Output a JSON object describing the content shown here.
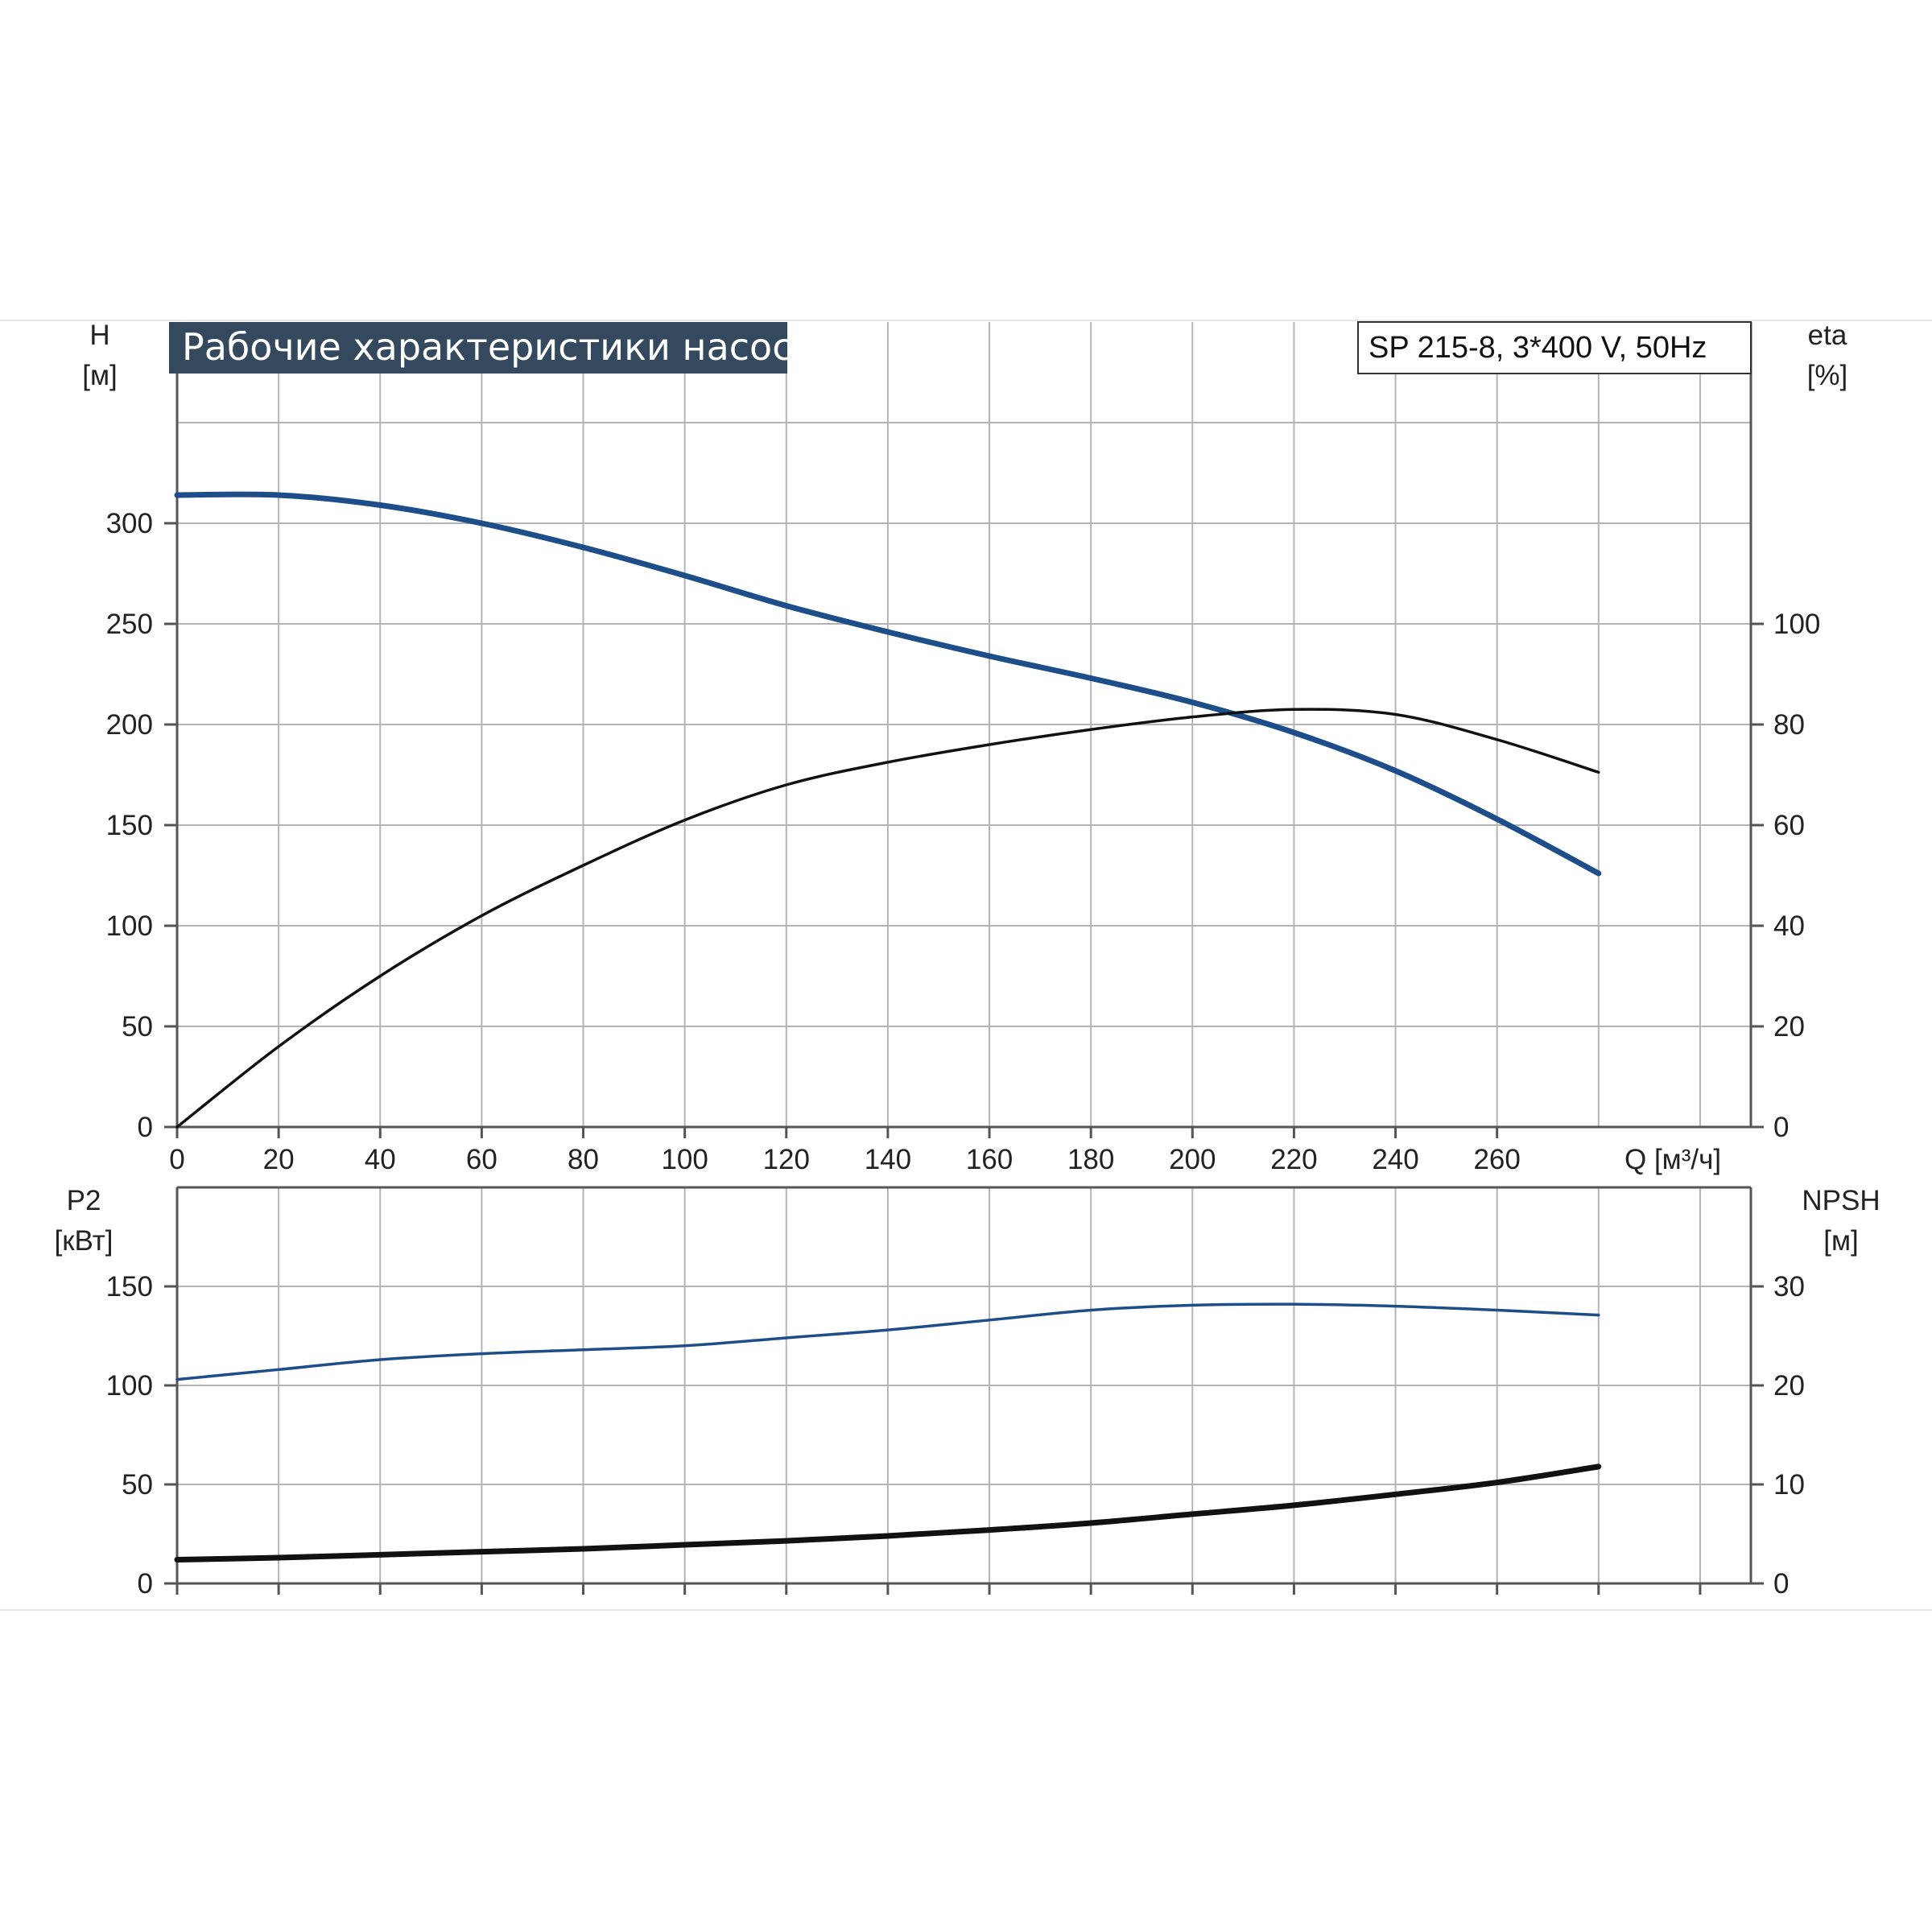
{
  "title": "Рабочие характеристики насоса",
  "model": "SP 215-8, 3*400 V, 50Hz",
  "colors": {
    "blue_curve": "#1d4e8a",
    "black_curve": "#111111",
    "grid": "#b4b4b4",
    "title_bg": "#34495e"
  },
  "chart_data": [
    {
      "type": "line",
      "x_axis": {
        "label": "Q [м³/ч]",
        "range": [
          0,
          310
        ],
        "ticks": [
          0,
          20,
          40,
          60,
          80,
          100,
          120,
          140,
          160,
          180,
          200,
          220,
          240,
          260
        ],
        "tick_labels": [
          "0",
          "20",
          "40",
          "60",
          "80",
          "100",
          "120",
          "140",
          "160",
          "180",
          "200",
          "220",
          "240",
          "260"
        ]
      },
      "y_left": {
        "label": "H",
        "unit": "[м]",
        "range": [
          0,
          400
        ],
        "ticks": [
          0,
          50,
          100,
          150,
          200,
          250,
          300
        ],
        "tick_labels": [
          "0",
          "50",
          "100",
          "150",
          "200",
          "250",
          "300"
        ]
      },
      "y_right": {
        "label": "eta",
        "unit": "[%]",
        "range": [
          0,
          160
        ],
        "ticks": [
          0,
          20,
          40,
          60,
          80,
          100
        ],
        "tick_labels": [
          "0",
          "20",
          "40",
          "60",
          "80",
          "100"
        ]
      },
      "grid": true,
      "series": [
        {
          "axis": "left",
          "color": "#1d4e8a",
          "x": [
            0,
            20,
            40,
            60,
            80,
            100,
            120,
            140,
            160,
            180,
            200,
            220,
            240,
            260,
            280
          ],
          "y": [
            314,
            314,
            309,
            300,
            288,
            274,
            259,
            246,
            234,
            223,
            211,
            196,
            177,
            153,
            126
          ]
        },
        {
          "axis": "right",
          "color": "#111111",
          "x": [
            0,
            20,
            40,
            60,
            80,
            100,
            120,
            140,
            160,
            180,
            200,
            220,
            240,
            260,
            280
          ],
          "y": [
            0,
            16,
            30,
            42,
            52,
            61,
            68,
            72.5,
            76,
            79,
            81.5,
            83,
            82,
            77,
            70.5
          ]
        }
      ]
    },
    {
      "type": "line",
      "x_axis": {
        "range": [
          0,
          310
        ],
        "ticks": [
          0,
          20,
          40,
          60,
          80,
          100,
          120,
          140,
          160,
          180,
          200,
          220,
          240,
          260,
          280,
          300
        ]
      },
      "y_left": {
        "label": "P2",
        "unit": "[кВт]",
        "range": [
          0,
          200
        ],
        "ticks": [
          0,
          50,
          100,
          150
        ],
        "tick_labels": [
          "0",
          "50",
          "100",
          "150"
        ]
      },
      "y_right": {
        "label": "NPSH",
        "unit": "[м]",
        "range": [
          0,
          40
        ],
        "ticks": [
          0,
          10,
          20,
          30
        ],
        "tick_labels": [
          "0",
          "10",
          "20",
          "30"
        ]
      },
      "grid": true,
      "series": [
        {
          "axis": "left",
          "color": "#1d4e8a",
          "x": [
            0,
            20,
            40,
            60,
            80,
            100,
            120,
            140,
            160,
            180,
            200,
            220,
            240,
            260,
            280
          ],
          "y": [
            103,
            108,
            113,
            116,
            118,
            120,
            124,
            128,
            133,
            138,
            140.5,
            141,
            140,
            138,
            135.5
          ]
        },
        {
          "axis": "right",
          "color": "#111111",
          "x": [
            0,
            20,
            40,
            60,
            80,
            100,
            120,
            140,
            160,
            180,
            200,
            220,
            240,
            260,
            280
          ],
          "y": [
            2.4,
            2.6,
            2.9,
            3.2,
            3.5,
            3.9,
            4.3,
            4.8,
            5.4,
            6.1,
            7.0,
            7.9,
            9.0,
            10.2,
            11.8
          ]
        }
      ]
    }
  ]
}
